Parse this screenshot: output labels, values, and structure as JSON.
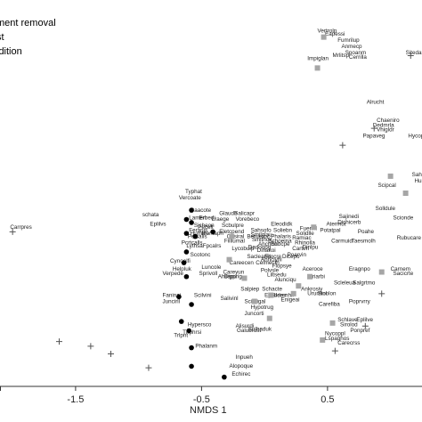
{
  "legend": {
    "items": [
      {
        "label": "ment removal",
        "marker": "none"
      },
      {
        "label": "st",
        "marker": "none"
      },
      {
        "label": "ldition",
        "marker": "none"
      }
    ]
  },
  "chart_data": {
    "type": "scatter",
    "title": "",
    "xlabel": "NMDS 1",
    "ylabel": "",
    "xlim": [
      -2.1,
      1.25
    ],
    "ylim": [
      -1.2,
      1.3
    ],
    "x_ticks": [
      {
        "value": -1.5,
        "label": "-1.5"
      },
      {
        "value": -0.5,
        "label": "-0.5"
      },
      {
        "value": 0.5,
        "label": "0.5"
      }
    ],
    "grid": false,
    "colors": {
      "circle": "#000000",
      "square": "#a6a6a6",
      "plus": "#555555",
      "text": "#222222"
    },
    "series": [
      {
        "marker": "circle",
        "points": [
          {
            "x": -0.58,
            "y": -0.06
          },
          {
            "x": -0.62,
            "y": -0.12
          },
          {
            "x": -0.58,
            "y": -0.14
          },
          {
            "x": -0.62,
            "y": -0.21
          },
          {
            "x": -0.55,
            "y": -0.23
          },
          {
            "x": -0.62,
            "y": -0.33
          },
          {
            "x": -0.64,
            "y": -0.4
          },
          {
            "x": -0.62,
            "y": -0.49
          },
          {
            "x": -0.68,
            "y": -0.62
          },
          {
            "x": -0.58,
            "y": -0.67
          },
          {
            "x": -0.66,
            "y": -0.78
          },
          {
            "x": -0.6,
            "y": -0.84
          },
          {
            "x": -0.58,
            "y": -0.95
          },
          {
            "x": -0.58,
            "y": -1.07
          },
          {
            "x": -0.32,
            "y": -1.14
          },
          {
            "x": -0.41,
            "y": -0.2
          }
        ]
      },
      {
        "marker": "square",
        "points": [
          {
            "x": 0.47,
            "y": 1.06
          },
          {
            "x": 0.42,
            "y": 0.86
          },
          {
            "x": 1.0,
            "y": 0.16
          },
          {
            "x": 1.12,
            "y": 0.05
          },
          {
            "x": -0.26,
            "y": -0.23
          },
          {
            "x": -0.28,
            "y": -0.38
          },
          {
            "x": -0.16,
            "y": -0.5
          },
          {
            "x": 0.36,
            "y": -0.49
          },
          {
            "x": 0.27,
            "y": -0.55
          },
          {
            "x": 0.05,
            "y": -0.61
          },
          {
            "x": -0.08,
            "y": -0.65
          },
          {
            "x": 0.23,
            "y": -0.6
          },
          {
            "x": 0.04,
            "y": -0.76
          },
          {
            "x": 0.46,
            "y": -0.9
          },
          {
            "x": 0.54,
            "y": -0.79
          },
          {
            "x": 0.93,
            "y": -0.46
          },
          {
            "x": 0.39,
            "y": -0.17
          }
        ]
      },
      {
        "marker": "plus",
        "points": [
          {
            "x": 1.16,
            "y": 0.94
          },
          {
            "x": 0.87,
            "y": 0.47
          },
          {
            "x": 0.62,
            "y": 0.36
          },
          {
            "x": -2.0,
            "y": -0.2
          },
          {
            "x": -1.63,
            "y": -0.91
          },
          {
            "x": -1.38,
            "y": -0.94
          },
          {
            "x": -1.22,
            "y": -0.99
          },
          {
            "x": -0.92,
            "y": -1.08
          },
          {
            "x": 0.56,
            "y": -0.97
          },
          {
            "x": 0.93,
            "y": -0.6
          },
          {
            "x": 0.8,
            "y": -0.81
          }
        ]
      }
    ],
    "labels": [
      {
        "text": "Carrpres",
        "x": -2.02,
        "y": -0.18
      },
      {
        "text": "Typhat",
        "x": -0.63,
        "y": 0.05
      },
      {
        "text": "Vercoate",
        "x": -0.68,
        "y": 0.01
      },
      {
        "text": "Caacote",
        "x": -0.59,
        "y": -0.07
      },
      {
        "text": "Lamerl",
        "x": -0.6,
        "y": -0.12
      },
      {
        "text": "Erbedi",
        "x": -0.52,
        "y": -0.12
      },
      {
        "text": "Sicheon",
        "x": -0.56,
        "y": -0.17
      },
      {
        "text": "schata",
        "x": -0.97,
        "y": -0.1
      },
      {
        "text": "Eplilvs",
        "x": -0.91,
        "y": -0.16
      },
      {
        "text": "Feranis",
        "x": -0.6,
        "y": -0.2
      },
      {
        "text": "Humitlo",
        "x": -0.59,
        "y": -0.22
      },
      {
        "text": "Mentaph",
        "x": -0.5,
        "y": -0.22
      },
      {
        "text": "Pecelt",
        "x": -0.53,
        "y": -0.18
      },
      {
        "text": "Pelsalls",
        "x": -0.61,
        "y": -0.24
      },
      {
        "text": "Pcrtcalls",
        "x": -0.66,
        "y": -0.28
      },
      {
        "text": "Lythsa",
        "x": -0.62,
        "y": -0.3
      },
      {
        "text": "Fpcalrs",
        "x": -0.49,
        "y": -0.3
      },
      {
        "text": "Scotonc",
        "x": -0.59,
        "y": -0.36
      },
      {
        "text": "Cynoelfi",
        "x": -0.75,
        "y": -0.4
      },
      {
        "text": "Helpluk",
        "x": -0.73,
        "y": -0.45
      },
      {
        "text": "Luncole",
        "x": -0.5,
        "y": -0.44
      },
      {
        "text": "Sprivoll",
        "x": -0.52,
        "y": -0.48
      },
      {
        "text": "Ahilepu",
        "x": -0.37,
        "y": -0.5
      },
      {
        "text": "Verpede",
        "x": -0.81,
        "y": -0.48
      },
      {
        "text": "Faninai",
        "x": -0.81,
        "y": -0.62
      },
      {
        "text": "Juncirll",
        "x": -0.81,
        "y": -0.66
      },
      {
        "text": "Scilvini",
        "x": -0.56,
        "y": -0.62
      },
      {
        "text": "Hypersco",
        "x": -0.61,
        "y": -0.81
      },
      {
        "text": "Thphrsi",
        "x": -0.65,
        "y": -0.86
      },
      {
        "text": "Phalanm",
        "x": -0.55,
        "y": -0.95
      },
      {
        "text": "Trlpnt",
        "x": -0.72,
        "y": -0.88
      },
      {
        "text": "Inpueh",
        "x": -0.23,
        "y": -1.02
      },
      {
        "text": "Alopoque",
        "x": -0.28,
        "y": -1.08
      },
      {
        "text": "Echirec",
        "x": -0.26,
        "y": -1.13
      },
      {
        "text": "Glaudlr",
        "x": -0.36,
        "y": -0.09
      },
      {
        "text": "Salicapr",
        "x": -0.24,
        "y": -0.09
      },
      {
        "text": "Lraege",
        "x": -0.42,
        "y": -0.13
      },
      {
        "text": "Vorebeco",
        "x": -0.23,
        "y": -0.13
      },
      {
        "text": "Scbulpre",
        "x": -0.34,
        "y": -0.17
      },
      {
        "text": "Eletcpend",
        "x": -0.36,
        "y": -0.21
      },
      {
        "text": "Cirsiral",
        "x": -0.3,
        "y": -0.24
      },
      {
        "text": "Berueroc",
        "x": -0.14,
        "y": -0.24
      },
      {
        "text": "Filllumal",
        "x": -0.32,
        "y": -0.27
      },
      {
        "text": "Lycobulp",
        "x": -0.26,
        "y": -0.32
      },
      {
        "text": "Careecen",
        "x": -0.28,
        "y": -0.41
      },
      {
        "text": "Celmecth",
        "x": -0.07,
        "y": -0.41
      },
      {
        "text": "Sacleanis",
        "x": -0.14,
        "y": -0.37
      },
      {
        "text": "Careyun",
        "x": -0.33,
        "y": -0.47
      },
      {
        "text": "Dipprig",
        "x": -0.32,
        "y": -0.5
      },
      {
        "text": "Salivinl",
        "x": -0.35,
        "y": -0.64
      },
      {
        "text": "Scirsigal",
        "x": -0.16,
        "y": -0.66
      },
      {
        "text": "Hypotrug",
        "x": -0.11,
        "y": -0.7
      },
      {
        "text": "Juncorti",
        "x": -0.16,
        "y": -0.74
      },
      {
        "text": "Alisurdi",
        "x": -0.23,
        "y": -0.82
      },
      {
        "text": "Galubrust",
        "x": -0.22,
        "y": -0.85
      },
      {
        "text": "Sulbaduk",
        "x": -0.13,
        "y": -0.84
      },
      {
        "text": "Salpiep",
        "x": -0.19,
        "y": -0.58
      },
      {
        "text": "Sahsofo",
        "x": -0.11,
        "y": -0.2
      },
      {
        "text": "Smilglau",
        "x": -0.11,
        "y": -0.23
      },
      {
        "text": "Sinlthox",
        "x": -0.1,
        "y": -0.26
      },
      {
        "text": "Dadoopg",
        "x": -0.13,
        "y": -0.31
      },
      {
        "text": "Dinakoi",
        "x": -0.06,
        "y": -0.33
      },
      {
        "text": "Filocre",
        "x": 0.0,
        "y": -0.37
      },
      {
        "text": "Phalaris",
        "x": 0.05,
        "y": -0.24
      },
      {
        "text": "Schoeina",
        "x": 0.03,
        "y": -0.27
      },
      {
        "text": "Soliebn",
        "x": 0.07,
        "y": -0.2
      },
      {
        "text": "Eleodidk",
        "x": 0.05,
        "y": -0.16
      },
      {
        "text": "Ahchbo",
        "x": -0.05,
        "y": -0.29
      },
      {
        "text": "Enbcpe",
        "x": 0.05,
        "y": -0.29
      },
      {
        "text": "Dicepo",
        "x": 0.14,
        "y": -0.37
      },
      {
        "text": "Ahnciyhi",
        "x": -0.03,
        "y": -0.39
      },
      {
        "text": "Flopsye",
        "x": 0.06,
        "y": -0.43
      },
      {
        "text": "Polvsle",
        "x": -0.03,
        "y": -0.46
      },
      {
        "text": "Liltsedu",
        "x": 0.02,
        "y": -0.49
      },
      {
        "text": "Alunciqu",
        "x": 0.08,
        "y": -0.52
      },
      {
        "text": "Schacte",
        "x": -0.02,
        "y": -0.58
      },
      {
        "text": "Eplidemr",
        "x": 0.0,
        "y": -0.62
      },
      {
        "text": "Bidemhir",
        "x": 0.06,
        "y": -0.62
      },
      {
        "text": "Enigeai",
        "x": 0.13,
        "y": -0.65
      },
      {
        "text": "Ankrosiy",
        "x": 0.29,
        "y": -0.58
      },
      {
        "text": "Ururdiol",
        "x": 0.34,
        "y": -0.61
      },
      {
        "text": "Sinolon",
        "x": 0.42,
        "y": -0.61
      },
      {
        "text": "Carefiba",
        "x": 0.43,
        "y": -0.68
      },
      {
        "text": "Scleleua",
        "x": 0.55,
        "y": -0.54
      },
      {
        "text": "Salgrtmo",
        "x": 0.7,
        "y": -0.54
      },
      {
        "text": "Eriarbi",
        "x": 0.35,
        "y": -0.5
      },
      {
        "text": "Aceroce",
        "x": 0.3,
        "y": -0.45
      },
      {
        "text": "Eragnpo",
        "x": 0.67,
        "y": -0.45
      },
      {
        "text": "Sajinedi",
        "x": 0.59,
        "y": -0.11
      },
      {
        "text": "Dichicerb",
        "x": 0.58,
        "y": -0.15
      },
      {
        "text": "Atermut",
        "x": 0.49,
        "y": -0.16
      },
      {
        "text": "Potatpal",
        "x": 0.44,
        "y": -0.2
      },
      {
        "text": "Poahe",
        "x": 0.74,
        "y": -0.21
      },
      {
        "text": "Carmuid",
        "x": 0.53,
        "y": -0.27
      },
      {
        "text": "Taesmolh",
        "x": 0.69,
        "y": -0.27
      },
      {
        "text": "Rhinolla",
        "x": 0.24,
        "y": -0.28
      },
      {
        "text": "Ramiac",
        "x": 0.22,
        "y": -0.25
      },
      {
        "text": "Solidlle",
        "x": 0.25,
        "y": -0.22
      },
      {
        "text": "Fuerinl",
        "x": 0.28,
        "y": -0.19
      },
      {
        "text": "Dinlpu",
        "x": 0.3,
        "y": -0.31
      },
      {
        "text": "Carteri",
        "x": 0.22,
        "y": -0.32
      },
      {
        "text": "Poarvin",
        "x": 0.18,
        "y": -0.36
      },
      {
        "text": "Vertrolp",
        "x": 0.42,
        "y": 1.09
      },
      {
        "text": "Eapessi",
        "x": 0.48,
        "y": 1.07
      },
      {
        "text": "Fumrilup",
        "x": 0.58,
        "y": 1.03
      },
      {
        "text": "Anmecp",
        "x": 0.61,
        "y": 0.99
      },
      {
        "text": "Spoanm",
        "x": 0.64,
        "y": 0.95
      },
      {
        "text": "Mrlitsp",
        "x": 0.54,
        "y": 0.93
      },
      {
        "text": "Cerrilla",
        "x": 0.67,
        "y": 0.92
      },
      {
        "text": "Impiglan",
        "x": 0.34,
        "y": 0.91
      },
      {
        "text": "Sitedar",
        "x": 1.12,
        "y": 0.95
      },
      {
        "text": "Alrucht",
        "x": 0.81,
        "y": 0.63
      },
      {
        "text": "Chaeniro",
        "x": 0.89,
        "y": 0.51
      },
      {
        "text": "Dedmrla",
        "x": 0.86,
        "y": 0.48
      },
      {
        "text": "Vhigldr",
        "x": 0.89,
        "y": 0.45
      },
      {
        "text": "Hycoperf",
        "x": 1.14,
        "y": 0.41
      },
      {
        "text": "Papaveg",
        "x": 0.78,
        "y": 0.41
      },
      {
        "text": "Sahnerv",
        "x": 1.17,
        "y": 0.16
      },
      {
        "text": "Humlab",
        "x": 1.19,
        "y": 0.12
      },
      {
        "text": "Scipcal",
        "x": 0.9,
        "y": 0.09
      },
      {
        "text": "Solldule",
        "x": 0.88,
        "y": -0.06
      },
      {
        "text": "Scionde",
        "x": 1.02,
        "y": -0.12
      },
      {
        "text": "Rubucare",
        "x": 1.05,
        "y": -0.25
      },
      {
        "text": "Carnem",
        "x": 1.0,
        "y": -0.45
      },
      {
        "text": "Sacicrte",
        "x": 1.02,
        "y": -0.48
      },
      {
        "text": "Poprvrry",
        "x": 0.67,
        "y": -0.66
      },
      {
        "text": "Eplilve",
        "x": 0.73,
        "y": -0.78
      },
      {
        "text": "Schlave",
        "x": 0.58,
        "y": -0.78
      },
      {
        "text": "Sirolod",
        "x": 0.6,
        "y": -0.81
      },
      {
        "text": "Ponpref",
        "x": 0.68,
        "y": -0.85
      },
      {
        "text": "Nycoppl",
        "x": 0.48,
        "y": -0.87
      },
      {
        "text": "Lspaghos",
        "x": 0.48,
        "y": -0.9
      },
      {
        "text": "Carecrss",
        "x": 0.58,
        "y": -0.93
      }
    ]
  }
}
